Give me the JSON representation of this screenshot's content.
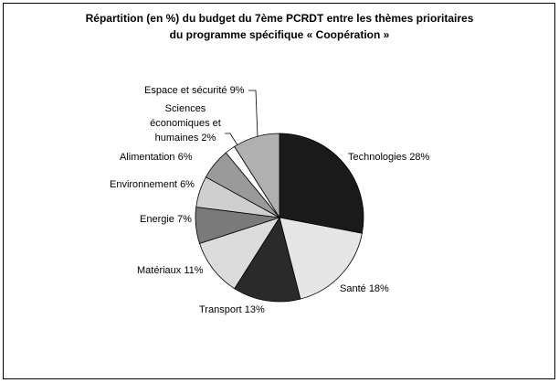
{
  "chart_data": {
    "type": "pie",
    "title": [
      "Répartition (en %) du budget du 7ème PCRDT entre les thèmes prioritaires",
      "du programme spécifique « Coopération »"
    ],
    "categories": [
      "Technologies",
      "Santé",
      "Transport",
      "Matériaux",
      "Energie",
      "Environnement",
      "Alimentation",
      "Sciences économiques et humaines",
      "Espace et sécurité"
    ],
    "values": [
      28,
      18,
      13,
      11,
      7,
      6,
      6,
      2,
      9
    ],
    "value_labels": [
      "28%",
      "18%",
      "13%",
      "11%",
      "7%",
      "6%",
      "6%",
      "2%",
      "9%"
    ],
    "colors": [
      "#1a1a1a",
      "#e6e6e6",
      "#2a2a2a",
      "#dcdcdc",
      "#7a7a7a",
      "#cfcfcf",
      "#9a9a9a",
      "#ffffff",
      "#b0b0b0"
    ]
  }
}
